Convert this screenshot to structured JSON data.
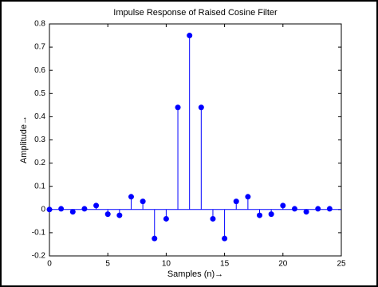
{
  "chart_data": {
    "type": "stem",
    "title": "Impulse Response of Raised Cosine Filter",
    "x_label": "Samples (n)→",
    "y_label": "Amplitude→",
    "x": [
      0,
      1,
      2,
      3,
      4,
      5,
      6,
      7,
      8,
      9,
      10,
      11,
      12,
      13,
      14,
      15,
      16,
      17,
      18,
      19,
      20,
      21,
      22,
      23,
      24
    ],
    "series": [
      {
        "color": "#0000ff",
        "values": [
          0,
          0.003,
          -0.01,
          0.003,
          0.017,
          -0.02,
          -0.025,
          0.055,
          0.035,
          -0.125,
          -0.04,
          0.44,
          0.75,
          0.44,
          -0.04,
          -0.125,
          0.035,
          0.055,
          -0.025,
          -0.02,
          0.017,
          0.003,
          -0.01,
          0.003,
          0.003
        ]
      }
    ],
    "xlim": [
      0,
      25
    ],
    "xticks": [
      0,
      5,
      10,
      15,
      20,
      25
    ],
    "ylim": [
      -0.2,
      0.8
    ],
    "yticks": [
      -0.2,
      -0.1,
      0,
      0.1,
      0.2,
      0.3,
      0.4,
      0.5,
      0.6,
      0.7,
      0.8
    ]
  }
}
